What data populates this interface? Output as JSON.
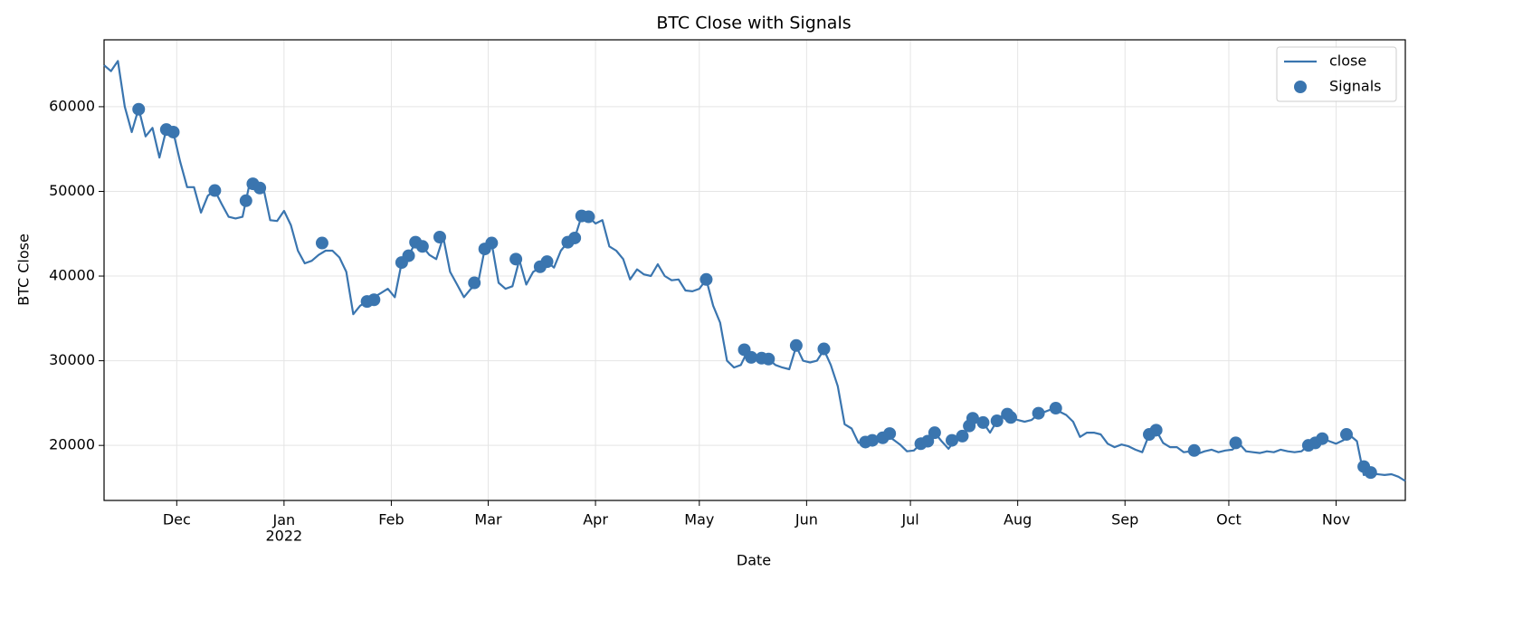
{
  "chart_data": {
    "type": "line",
    "title": "BTC Close with Signals",
    "xlabel": "Date",
    "ylabel": "BTC Close",
    "xlim": [
      0,
      376
    ],
    "xticks": [
      {
        "value": 21,
        "label": "Dec"
      },
      {
        "value": 52,
        "label": "Jan\n2022"
      },
      {
        "value": 83,
        "label": "Feb"
      },
      {
        "value": 111,
        "label": "Mar"
      },
      {
        "value": 142,
        "label": "Apr"
      },
      {
        "value": 172,
        "label": "May"
      },
      {
        "value": 203,
        "label": "Jun"
      },
      {
        "value": 233,
        "label": "Jul"
      },
      {
        "value": 264,
        "label": "Aug"
      },
      {
        "value": 295,
        "label": "Sep"
      },
      {
        "value": 325,
        "label": "Oct"
      },
      {
        "value": 356,
        "label": "Nov"
      }
    ],
    "ylim": [
      13500,
      67900
    ],
    "yticks": [
      20000,
      30000,
      40000,
      50000,
      60000
    ],
    "grid": true,
    "legend": "upper right",
    "series": [
      {
        "name": "close",
        "type": "line",
        "color": "#3a75af",
        "x": [
          0,
          2,
          4,
          6,
          8,
          10,
          12,
          14,
          16,
          18,
          20,
          22,
          24,
          26,
          28,
          30,
          32,
          34,
          36,
          38,
          40,
          42,
          44,
          46,
          48,
          50,
          52,
          54,
          56,
          58,
          60,
          62,
          64,
          66,
          68,
          70,
          72,
          74,
          76,
          78,
          80,
          82,
          84,
          86,
          88,
          90,
          92,
          94,
          96,
          98,
          100,
          102,
          104,
          106,
          108,
          110,
          112,
          114,
          116,
          118,
          120,
          122,
          124,
          126,
          128,
          130,
          132,
          134,
          136,
          138,
          140,
          142,
          144,
          146,
          148,
          150,
          152,
          154,
          156,
          158,
          160,
          162,
          164,
          166,
          168,
          170,
          172,
          174,
          176,
          178,
          180,
          182,
          184,
          186,
          188,
          190,
          192,
          194,
          196,
          198,
          200,
          202,
          204,
          206,
          208,
          210,
          212,
          214,
          216,
          218,
          220,
          222,
          224,
          226,
          228,
          230,
          232,
          234,
          236,
          238,
          240,
          242,
          244,
          246,
          248,
          250,
          252,
          254,
          256,
          258,
          260,
          262,
          264,
          266,
          268,
          270,
          272,
          274,
          276,
          278,
          280,
          282,
          284,
          286,
          288,
          290,
          292,
          294,
          296,
          298,
          300,
          302,
          304,
          306,
          308,
          310,
          312,
          314,
          316,
          318,
          320,
          322,
          324,
          326,
          328,
          330,
          332,
          334,
          336,
          338,
          340,
          342,
          344,
          346,
          348,
          350,
          352,
          354,
          356,
          358,
          360,
          362,
          364,
          366,
          368,
          370,
          372,
          374,
          376
        ],
        "values": [
          64900,
          64200,
          65400,
          60000,
          57000,
          59800,
          56500,
          57500,
          54000,
          57300,
          57000,
          53500,
          50500,
          50500,
          47500,
          49500,
          50100,
          48500,
          47000,
          46800,
          47000,
          50800,
          50500,
          50500,
          46600,
          46500,
          47700,
          46000,
          43000,
          41500,
          41800,
          42500,
          43000,
          43000,
          42200,
          40500,
          35500,
          36500,
          37000,
          37500,
          38000,
          38500,
          37500,
          41600,
          42400,
          44000,
          43500,
          42500,
          42000,
          44600,
          40500,
          39000,
          37500,
          38500,
          39000,
          43200,
          43900,
          39200,
          38500,
          38800,
          41900,
          39000,
          40500,
          41000,
          41700,
          41000,
          43000,
          44000,
          44500,
          47100,
          47000,
          46200,
          46600,
          43500,
          43000,
          42000,
          39600,
          40800,
          40200,
          40000,
          41400,
          40000,
          39500,
          39600,
          38300,
          38200,
          38500,
          39600,
          36500,
          34500,
          30000,
          29200,
          29500,
          31200,
          30300,
          30100,
          30200,
          29500,
          29200,
          29000,
          31700,
          30000,
          29800,
          30000,
          31300,
          29500,
          27000,
          22500,
          22000,
          20300,
          20400,
          20500,
          20900,
          21300,
          20700,
          20100,
          19300,
          19400,
          20200,
          20500,
          21500,
          20500,
          19600,
          20700,
          21100,
          22300,
          23100,
          22700,
          21500,
          22900,
          23700,
          23300,
          23000,
          22800,
          23000,
          23700,
          24000,
          24300,
          24000,
          23600,
          22800,
          21000,
          21500,
          21500,
          21300,
          20200,
          19800,
          20100,
          19900,
          19500,
          19200,
          21300,
          21800,
          20300,
          19800,
          19800,
          19200,
          19300,
          19000,
          19300,
          19500,
          19200,
          19400,
          19500,
          20200,
          19300,
          19200,
          19100,
          19300,
          19200,
          19500,
          19300,
          19200,
          19300,
          20000,
          20200,
          20800,
          20500,
          20200,
          20600,
          21200,
          20500,
          16500,
          16700,
          16600,
          16500,
          16600,
          16300,
          15800
        ]
      },
      {
        "name": "Signals",
        "type": "scatter",
        "color": "#3a75af",
        "x": [
          10,
          18,
          20,
          32,
          41,
          43,
          45,
          63,
          76,
          78,
          86,
          88,
          90,
          92,
          97,
          107,
          110,
          112,
          119,
          126,
          128,
          134,
          136,
          138,
          140,
          174,
          185,
          187,
          190,
          192,
          200,
          208,
          220,
          222,
          225,
          227,
          236,
          238,
          240,
          245,
          248,
          250,
          251,
          254,
          258,
          261,
          262,
          270,
          275,
          302,
          304,
          315,
          327,
          348,
          350,
          352,
          359,
          364,
          366
        ],
        "values": [
          59700,
          57300,
          57000,
          50100,
          48900,
          50900,
          50400,
          43900,
          37000,
          37200,
          41600,
          42400,
          44000,
          43500,
          44600,
          39200,
          43200,
          43900,
          42000,
          41100,
          41700,
          44000,
          44500,
          47100,
          47000,
          39600,
          31300,
          30400,
          30300,
          30200,
          31800,
          31400,
          20400,
          20600,
          20900,
          21400,
          20200,
          20500,
          21500,
          20600,
          21100,
          22300,
          23200,
          22700,
          22900,
          23700,
          23300,
          23800,
          24400,
          21300,
          21800,
          19400,
          20300,
          20000,
          20300,
          20800,
          21300,
          17500,
          16800
        ]
      }
    ]
  }
}
